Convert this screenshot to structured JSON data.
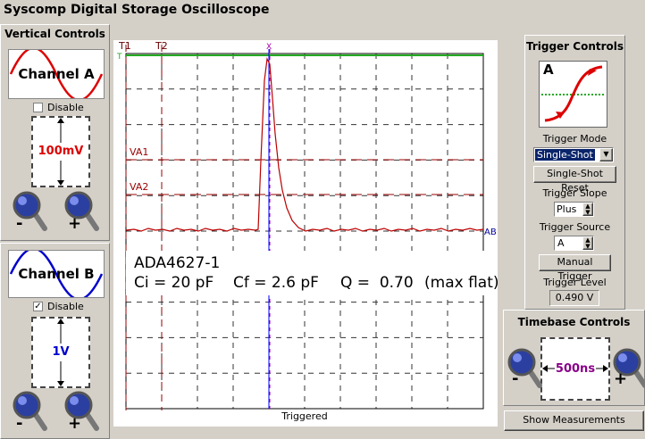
{
  "window": {
    "title": "Syscomp Digital Storage Oscilloscope"
  },
  "vertical_controls": {
    "title": "Vertical Controls",
    "channel_a": {
      "label": "Channel A",
      "disable": "Disable",
      "disable_checked": false,
      "scale": "100mV",
      "minus": "-",
      "plus": "+"
    },
    "channel_b": {
      "label": "Channel B",
      "disable": "Disable",
      "disable_checked": true,
      "scale": "1V",
      "minus": "-",
      "plus": "+"
    }
  },
  "scope": {
    "cursors": [
      "T1",
      "T2"
    ],
    "trigger_marker": "T",
    "x_marker": "X",
    "levels": [
      "VA1",
      "VA2"
    ],
    "ab": "AB",
    "annotation": {
      "part": "ADA4627-1",
      "ci": "Ci = 20 pF",
      "cf": "Cf = 2.6 pF",
      "q": "Q =  0.70",
      "note": "(max flat)"
    },
    "status": "Triggered"
  },
  "trigger_controls": {
    "title": "Trigger Controls",
    "icon_channel": "A",
    "mode_label": "Trigger Mode",
    "mode": "Single-Shot",
    "reset": "Single-Shot Reset",
    "slope_label": "Trigger Slope",
    "slope": "Plus",
    "source_label": "Trigger Source",
    "source": "A",
    "manual": "Manual Trigger",
    "level_label": "Trigger Level",
    "level": "0.490 V"
  },
  "timebase_controls": {
    "title": "Timebase Controls",
    "scale": "500ns",
    "minus": "-",
    "plus": "+"
  },
  "show_measurements": "Show Measurements"
}
